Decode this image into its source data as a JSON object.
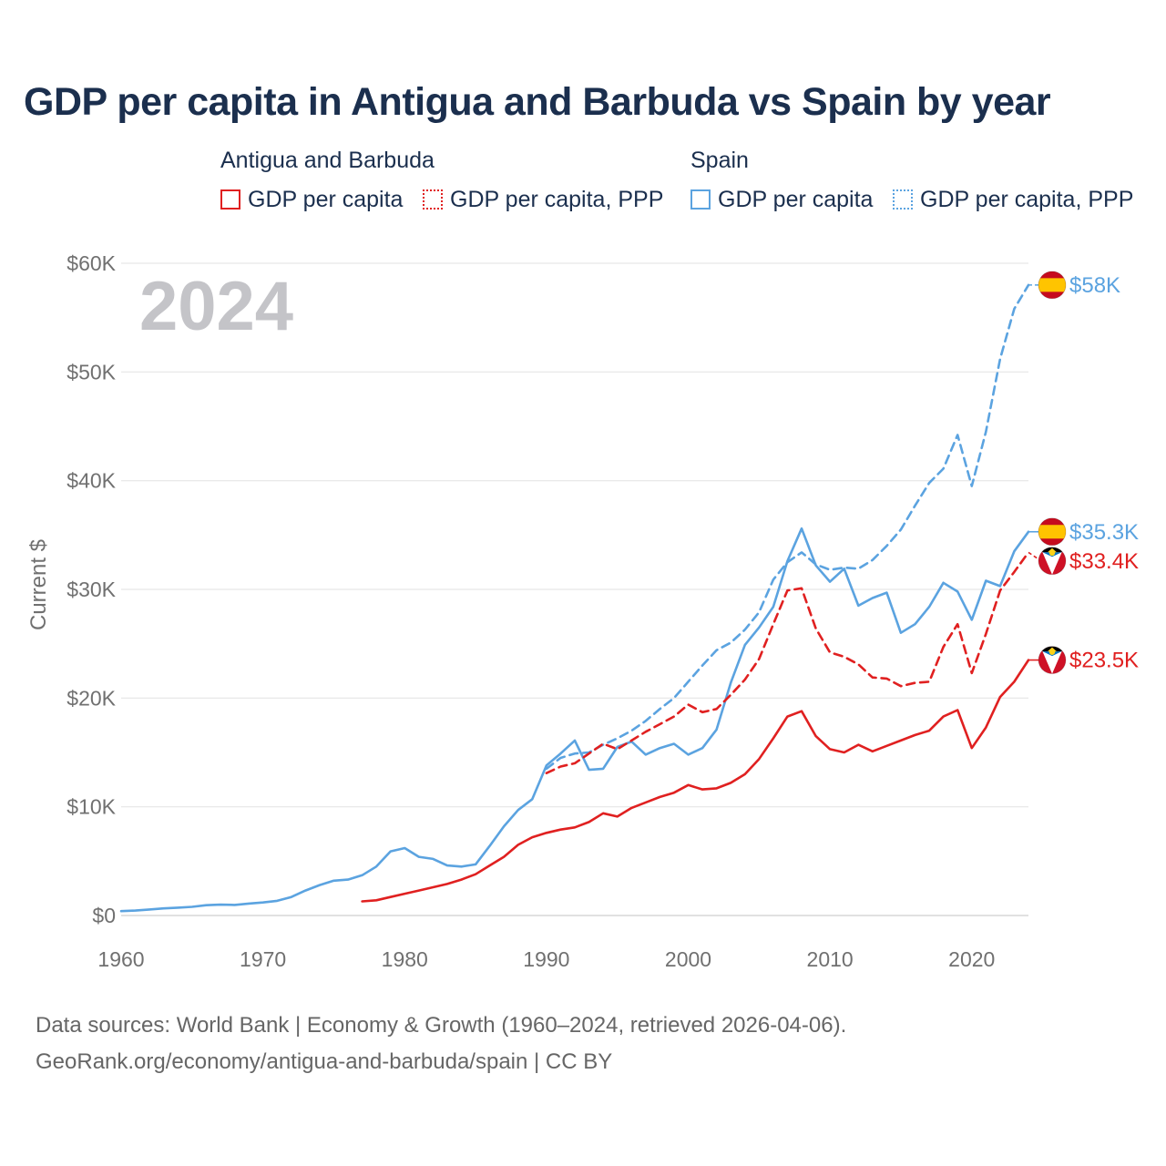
{
  "chart_data": {
    "type": "line",
    "title": "GDP per capita in Antigua and Barbuda vs Spain by year",
    "year_label": "2024",
    "ylabel": "Current $",
    "xlabel": "",
    "xlim": [
      1960,
      2024
    ],
    "ylim": [
      0,
      60000
    ],
    "x_ticks": [
      1960,
      1970,
      1980,
      1990,
      2000,
      2010,
      2020
    ],
    "y_ticks": [
      {
        "value": 0,
        "label": "$0"
      },
      {
        "value": 10000,
        "label": "$10K"
      },
      {
        "value": 20000,
        "label": "$20K"
      },
      {
        "value": 30000,
        "label": "$30K"
      },
      {
        "value": 40000,
        "label": "$40K"
      },
      {
        "value": 50000,
        "label": "$50K"
      },
      {
        "value": 60000,
        "label": "$60K"
      }
    ],
    "grid": true,
    "legend_groups": [
      {
        "title": "Antigua and Barbuda",
        "items": [
          "GDP per capita",
          "GDP per capita, PPP"
        ]
      },
      {
        "title": "Spain",
        "items": [
          "GDP per capita",
          "GDP per capita, PPP"
        ]
      }
    ],
    "series": [
      {
        "id": "spain-ppp",
        "country": "Spain",
        "name": "GDP per capita, PPP",
        "color": "#5ba3e0",
        "style": "dashed",
        "end_label": "$58K",
        "flag": "spain",
        "x": [
          1990,
          1991,
          1992,
          1993,
          1994,
          1995,
          1996,
          1997,
          1998,
          1999,
          2000,
          2001,
          2002,
          2003,
          2004,
          2005,
          2006,
          2007,
          2008,
          2009,
          2010,
          2011,
          2012,
          2013,
          2014,
          2015,
          2016,
          2017,
          2018,
          2019,
          2020,
          2021,
          2022,
          2023,
          2024
        ],
        "values": [
          13500,
          14500,
          14900,
          15000,
          15700,
          16300,
          17000,
          17900,
          19000,
          20000,
          21500,
          23000,
          24400,
          25100,
          26300,
          27900,
          30900,
          32500,
          33400,
          32300,
          31800,
          32000,
          31900,
          32700,
          34000,
          35500,
          37700,
          39800,
          41100,
          44200,
          39500,
          44500,
          51200,
          55800,
          58000
        ]
      },
      {
        "id": "spain-gdp",
        "country": "Spain",
        "name": "GDP per capita",
        "color": "#5ba3e0",
        "style": "solid",
        "end_label": "$35.3K",
        "flag": "spain",
        "x": [
          1960,
          1961,
          1962,
          1963,
          1964,
          1965,
          1966,
          1967,
          1968,
          1969,
          1970,
          1971,
          1972,
          1973,
          1974,
          1975,
          1976,
          1977,
          1978,
          1979,
          1980,
          1981,
          1982,
          1983,
          1984,
          1985,
          1986,
          1987,
          1988,
          1989,
          1990,
          1991,
          1992,
          1993,
          1994,
          1995,
          1996,
          1997,
          1998,
          1999,
          2000,
          2001,
          2002,
          2003,
          2004,
          2005,
          2006,
          2007,
          2008,
          2009,
          2010,
          2011,
          2012,
          2013,
          2014,
          2015,
          2016,
          2017,
          2018,
          2019,
          2020,
          2021,
          2022,
          2023,
          2024
        ],
        "values": [
          400,
          450,
          550,
          650,
          720,
          800,
          950,
          1000,
          970,
          1100,
          1200,
          1350,
          1700,
          2300,
          2800,
          3200,
          3300,
          3700,
          4500,
          5900,
          6200,
          5400,
          5200,
          4600,
          4500,
          4700,
          6400,
          8200,
          9700,
          10700,
          13800,
          14900,
          16100,
          13400,
          13500,
          15500,
          16000,
          14800,
          15400,
          15800,
          14800,
          15400,
          17100,
          21400,
          24900,
          26500,
          28400,
          32600,
          35600,
          32200,
          30700,
          31900,
          28500,
          29200,
          29700,
          26000,
          26800,
          28400,
          30600,
          29800,
          27200,
          30800,
          30300,
          33500,
          35300
        ]
      },
      {
        "id": "antigua-ppp",
        "country": "Antigua and Barbuda",
        "name": "GDP per capita, PPP",
        "color": "#e02020",
        "style": "dashed",
        "end_label": "$33.4K",
        "flag": "antigua",
        "x": [
          1990,
          1991,
          1992,
          1993,
          1994,
          1995,
          1996,
          1997,
          1998,
          1999,
          2000,
          2001,
          2002,
          2003,
          2004,
          2005,
          2006,
          2007,
          2008,
          2009,
          2010,
          2011,
          2012,
          2013,
          2014,
          2015,
          2016,
          2017,
          2018,
          2019,
          2020,
          2021,
          2022,
          2023,
          2024
        ],
        "values": [
          13100,
          13700,
          14000,
          14900,
          15800,
          15300,
          16100,
          16900,
          17600,
          18300,
          19400,
          18700,
          19000,
          20300,
          21700,
          23600,
          26800,
          29900,
          30100,
          26400,
          24200,
          23800,
          23100,
          21900,
          21800,
          21100,
          21400,
          21500,
          24700,
          26800,
          22300,
          25900,
          29900,
          31600,
          33400
        ]
      },
      {
        "id": "antigua-gdp",
        "country": "Antigua and Barbuda",
        "name": "GDP per capita",
        "color": "#e02020",
        "style": "solid",
        "end_label": "$23.5K",
        "flag": "antigua",
        "x": [
          1977,
          1978,
          1979,
          1980,
          1981,
          1982,
          1983,
          1984,
          1985,
          1986,
          1987,
          1988,
          1989,
          1990,
          1991,
          1992,
          1993,
          1994,
          1995,
          1996,
          1997,
          1998,
          1999,
          2000,
          2001,
          2002,
          2003,
          2004,
          2005,
          2006,
          2007,
          2008,
          2009,
          2010,
          2011,
          2012,
          2013,
          2014,
          2015,
          2016,
          2017,
          2018,
          2019,
          2020,
          2021,
          2022,
          2023,
          2024
        ],
        "values": [
          1300,
          1400,
          1700,
          2000,
          2300,
          2600,
          2900,
          3300,
          3800,
          4600,
          5400,
          6500,
          7200,
          7600,
          7900,
          8100,
          8600,
          9400,
          9100,
          9900,
          10400,
          10900,
          11300,
          12000,
          11600,
          11700,
          12200,
          13000,
          14400,
          16300,
          18300,
          18800,
          16500,
          15300,
          15000,
          15700,
          15100,
          15600,
          16100,
          16600,
          17000,
          18300,
          18900,
          15400,
          17300,
          20100,
          21500,
          23500
        ]
      }
    ],
    "footer_lines": [
      "Data sources: World Bank | Economy & Growth (1960–2024, retrieved 2026-04-06).",
      "GeoRank.org/economy/antigua-and-barbuda/spain | CC BY"
    ]
  }
}
